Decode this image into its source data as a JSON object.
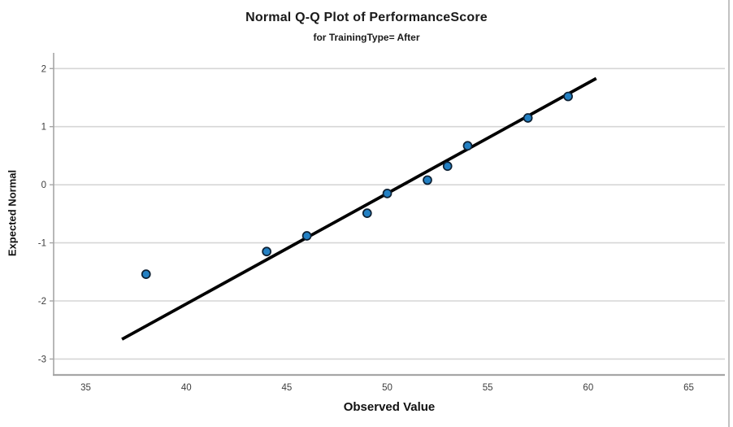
{
  "chart": {
    "title": "Normal Q-Q Plot of PerformanceScore",
    "subtitle": "for TrainingType= After",
    "xlabel": "Observed Value",
    "ylabel": "Expected Normal"
  },
  "chart_data": {
    "type": "scatter",
    "title": "Normal Q-Q Plot of PerformanceScore",
    "subtitle": "for TrainingType= After",
    "xlabel": "Observed Value",
    "ylabel": "Expected Normal",
    "xlim": [
      33.4,
      66.8
    ],
    "ylim": [
      -3.26,
      2.27
    ],
    "x_ticks": [
      35,
      40,
      45,
      50,
      55,
      60,
      65
    ],
    "y_ticks": [
      2,
      1,
      0,
      -1,
      -2,
      -3
    ],
    "grid": "horizontal-only",
    "legend": "none",
    "points": [
      {
        "x": 38,
        "y": -1.54
      },
      {
        "x": 44,
        "y": -1.15
      },
      {
        "x": 46,
        "y": -0.88
      },
      {
        "x": 49,
        "y": -0.49
      },
      {
        "x": 50,
        "y": -0.15
      },
      {
        "x": 52,
        "y": 0.08
      },
      {
        "x": 53,
        "y": 0.32
      },
      {
        "x": 54,
        "y": 0.67
      },
      {
        "x": 57,
        "y": 1.15
      },
      {
        "x": 59,
        "y": 1.52
      }
    ],
    "fit_line": {
      "x1": 36.8,
      "y1": -2.66,
      "x2": 60.4,
      "y2": 1.83
    },
    "colors": {
      "point_fill": "#2380c3",
      "point_stroke": "#0d2033",
      "fit_line": "#000000",
      "gridline": "#d6d6d6",
      "spine": "#a6a6a6",
      "tick_label": "#3d3d3d"
    }
  }
}
